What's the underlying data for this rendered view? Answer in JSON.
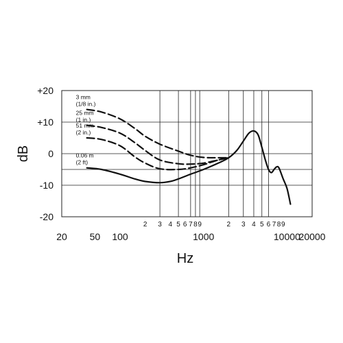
{
  "chart_data": {
    "type": "line",
    "title": "",
    "xlabel": "Hz",
    "ylabel": "dB",
    "x_scale": "log",
    "xlim": [
      20,
      20000
    ],
    "ylim": [
      -20,
      20
    ],
    "y_ticks": [
      "+20",
      "+10",
      "0",
      "-10",
      "-20"
    ],
    "x_major_ticks": [
      "20",
      "50",
      "100",
      "1000",
      "10000",
      "20000"
    ],
    "x_minor_ticks": [
      {
        "label": "2",
        "value": 200
      },
      {
        "label": "3",
        "value": 300
      },
      {
        "label": "4",
        "value": 400
      },
      {
        "label": "5",
        "value": 500
      },
      {
        "label": "6",
        "value": 600
      },
      {
        "label": "7",
        "value": 700
      },
      {
        "label": "8",
        "value": 800
      },
      {
        "label": "9",
        "value": 900
      },
      {
        "label": "2",
        "value": 2000
      },
      {
        "label": "3",
        "value": 3000
      },
      {
        "label": "4",
        "value": 4000
      },
      {
        "label": "5",
        "value": 5000
      },
      {
        "label": "6",
        "value": 6000
      },
      {
        "label": "7",
        "value": 7000
      },
      {
        "label": "8",
        "value": 8000
      },
      {
        "label": "9",
        "value": 9000
      }
    ],
    "vertical_grid": [
      300,
      500,
      700,
      800,
      900,
      2000,
      3000,
      4000,
      5000,
      6000
    ],
    "horizontal_grid": [
      10,
      0,
      -5,
      -10
    ],
    "series": [
      {
        "name_lines": [
          "3 mm",
          "(1/8 in.)"
        ],
        "style": "dashed",
        "points": [
          [
            40,
            14
          ],
          [
            60,
            13.2
          ],
          [
            100,
            11
          ],
          [
            150,
            8
          ],
          [
            200,
            5.5
          ],
          [
            300,
            3
          ],
          [
            500,
            0.8
          ],
          [
            700,
            -0.5
          ],
          [
            1000,
            -1.2
          ],
          [
            1500,
            -1.3
          ],
          [
            2000,
            -1.3
          ]
        ]
      },
      {
        "name_lines": [
          "25 mm",
          "(1 in.)"
        ],
        "style": "dashed",
        "points": [
          [
            40,
            9
          ],
          [
            60,
            8.3
          ],
          [
            100,
            6.5
          ],
          [
            150,
            3.5
          ],
          [
            200,
            1
          ],
          [
            300,
            -2
          ],
          [
            500,
            -3.2
          ],
          [
            700,
            -3.3
          ],
          [
            1000,
            -3
          ],
          [
            1500,
            -2
          ],
          [
            2000,
            -1.3
          ]
        ]
      },
      {
        "name_lines": [
          "51 mm",
          "(2 in.)"
        ],
        "style": "dashed",
        "points": [
          [
            40,
            5
          ],
          [
            60,
            4.5
          ],
          [
            100,
            2.5
          ],
          [
            150,
            -1
          ],
          [
            200,
            -3
          ],
          [
            300,
            -4.8
          ],
          [
            500,
            -5
          ],
          [
            700,
            -4.5
          ],
          [
            1000,
            -3.5
          ],
          [
            1500,
            -2
          ],
          [
            2000,
            -1.3
          ]
        ]
      },
      {
        "name_lines": [
          "0.06 m",
          "(2 ft)"
        ],
        "style": "solid",
        "points": [
          [
            40,
            -4.5
          ],
          [
            60,
            -5
          ],
          [
            100,
            -6.5
          ],
          [
            150,
            -8
          ],
          [
            200,
            -8.8
          ],
          [
            300,
            -9.2
          ],
          [
            400,
            -8.8
          ],
          [
            500,
            -8
          ],
          [
            700,
            -6.5
          ],
          [
            1000,
            -5
          ],
          [
            1500,
            -3
          ],
          [
            2000,
            -1.3
          ],
          [
            2500,
            1
          ],
          [
            3000,
            4
          ],
          [
            3500,
            6.5
          ],
          [
            4000,
            7.2
          ],
          [
            4500,
            6
          ],
          [
            5000,
            2
          ],
          [
            5500,
            -2
          ],
          [
            6000,
            -5
          ],
          [
            6500,
            -6
          ],
          [
            7000,
            -5
          ],
          [
            7500,
            -4.2
          ],
          [
            8000,
            -4.5
          ],
          [
            9000,
            -8
          ],
          [
            10000,
            -11
          ],
          [
            11000,
            -16
          ]
        ]
      }
    ],
    "grid": true,
    "legend": "inline"
  }
}
